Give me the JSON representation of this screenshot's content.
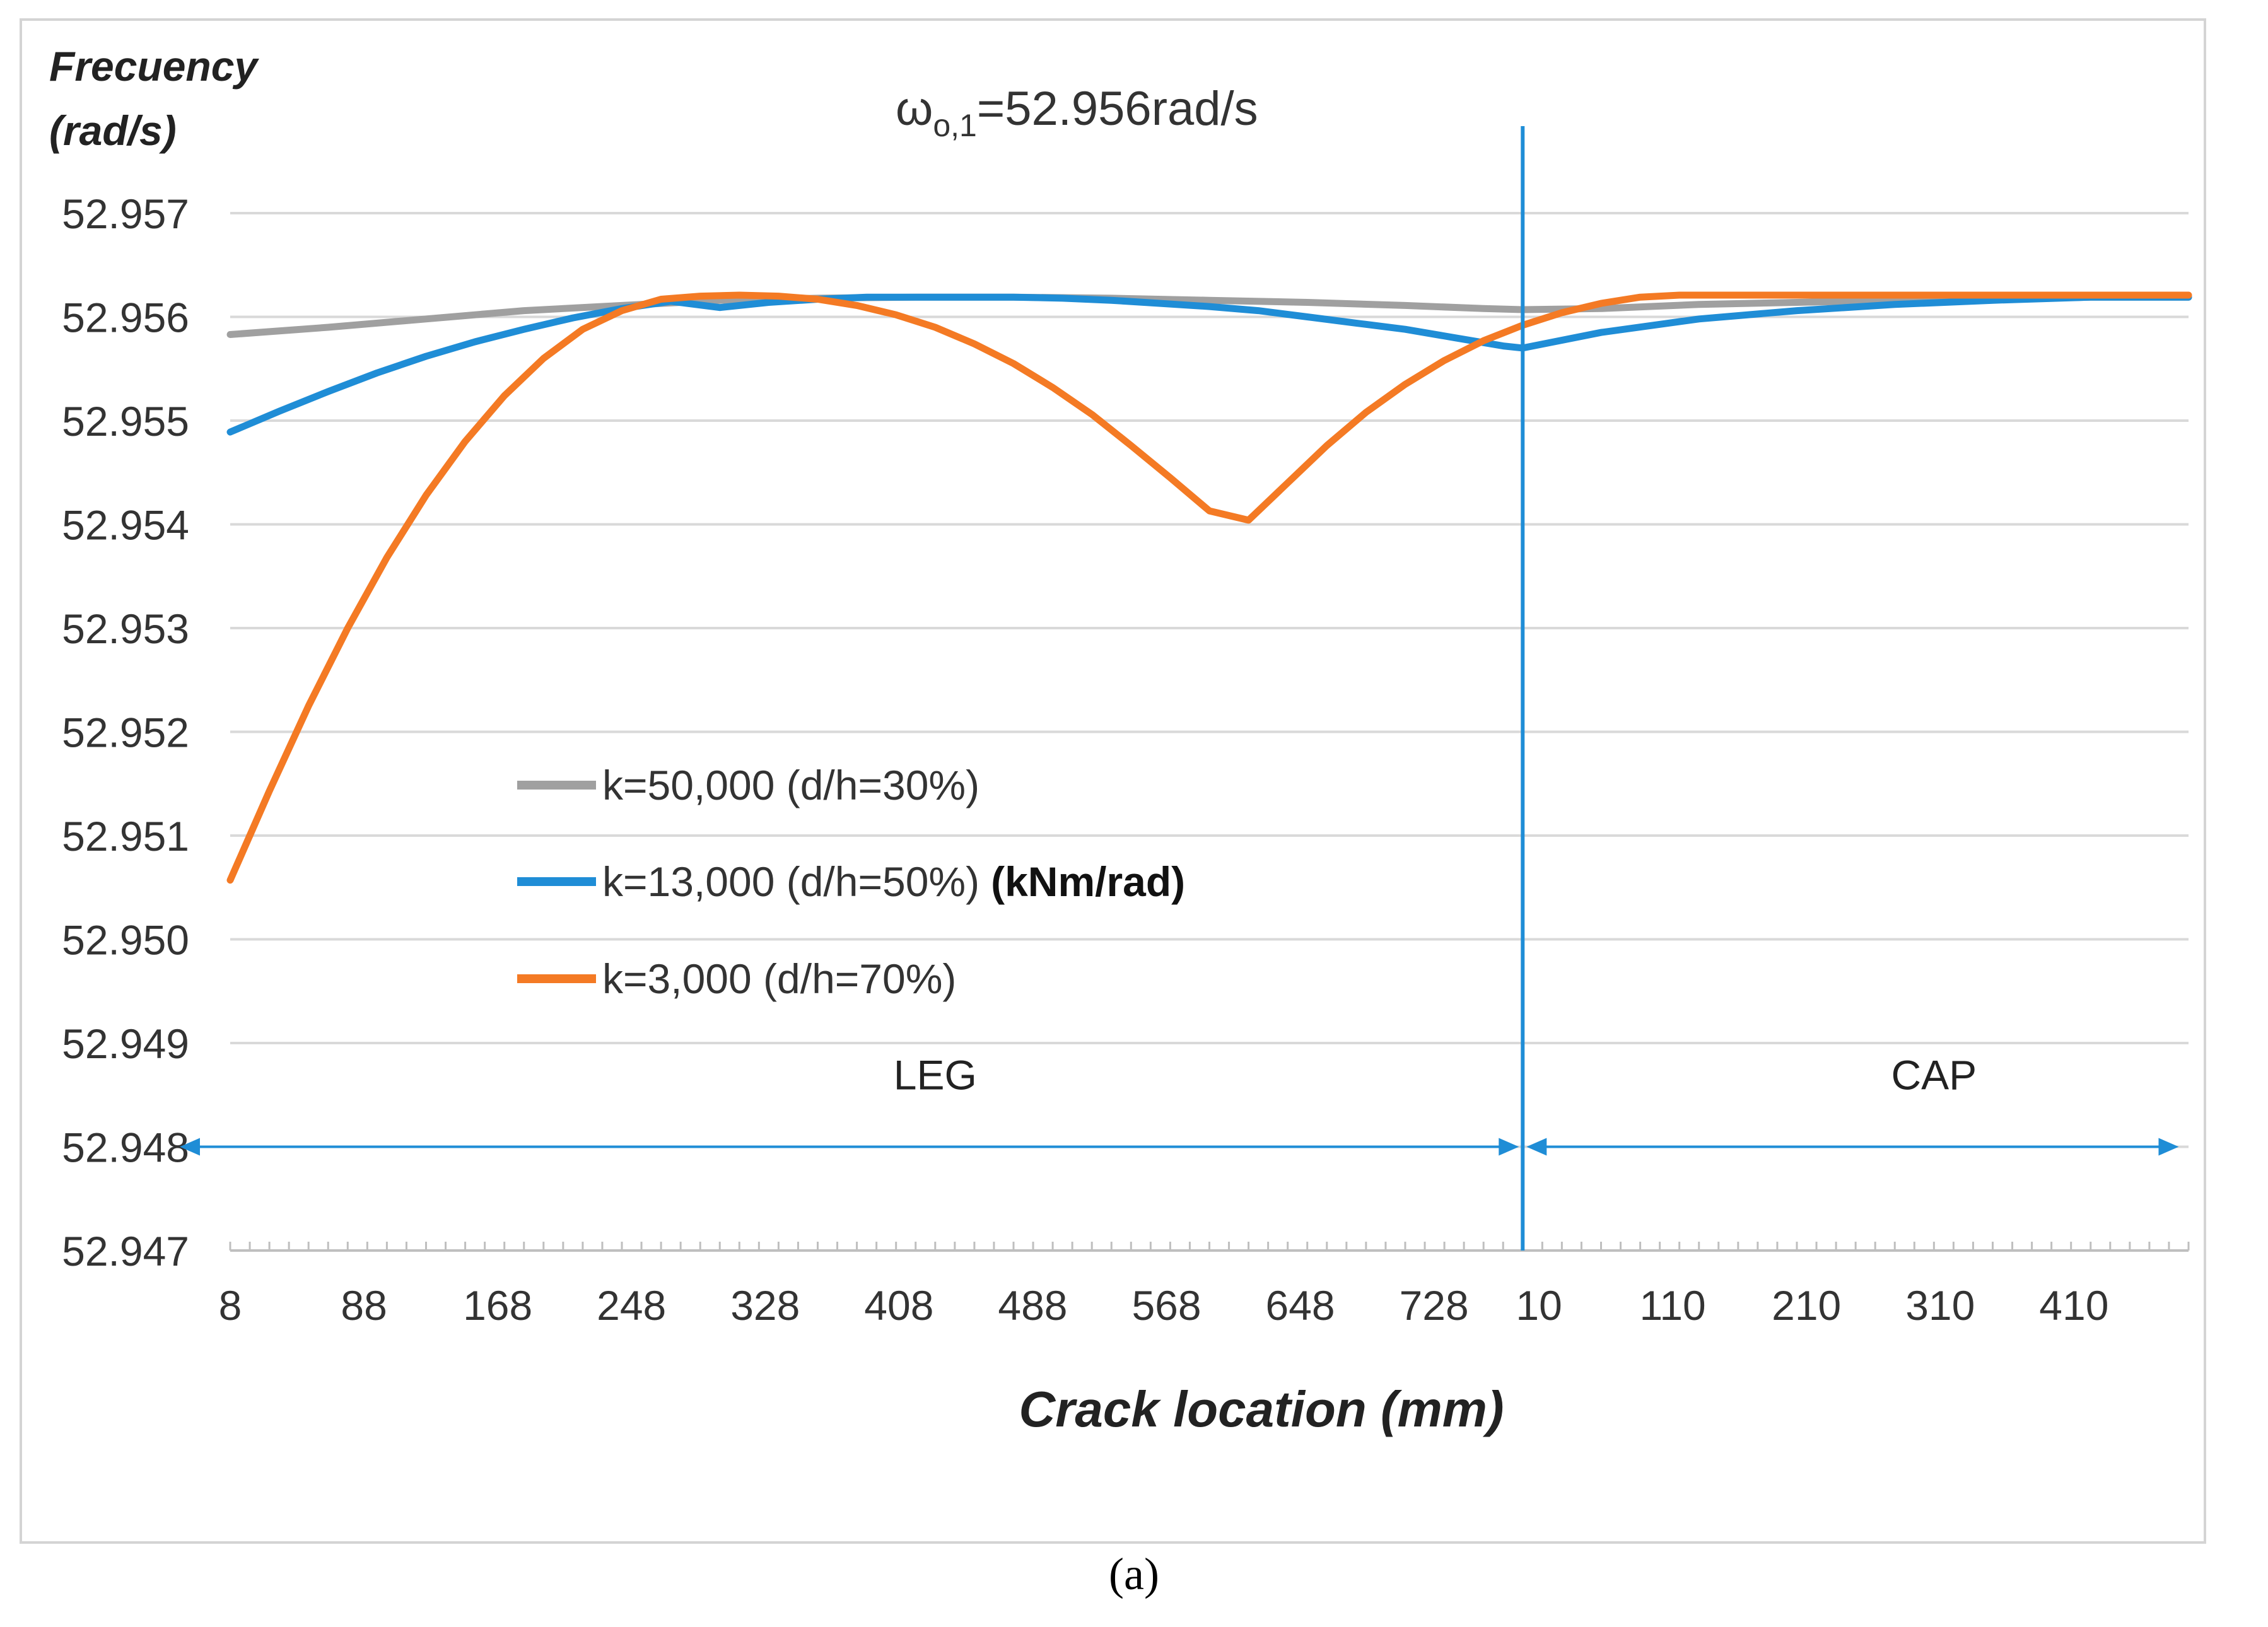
{
  "chart_data": {
    "type": "line",
    "title": "ωo,1=52.956rad/s",
    "title_parts": {
      "symbol": "ω",
      "subscript": "o,1",
      "value": "=52.956rad/s"
    },
    "ylabel_line1": "Frecuency",
    "ylabel_line2": "(rad/s)",
    "xlabel": "Crack location (mm)",
    "grid": true,
    "legend_position": "center-left",
    "legend_unit": "(kNm/rad)",
    "ylim": [
      52.947,
      52.957
    ],
    "yticks": [
      "52.957",
      "52.956",
      "52.955",
      "52.954",
      "52.953",
      "52.952",
      "52.951",
      "52.950",
      "52.949",
      "52.948",
      "52.947"
    ],
    "ytick_values": [
      52.957,
      52.956,
      52.955,
      52.954,
      52.953,
      52.952,
      52.951,
      52.95,
      52.949,
      52.948,
      52.947
    ],
    "xlim": [
      0,
      1
    ],
    "xticks": [
      {
        "label": "8",
        "pos": 0.0
      },
      {
        "label": "88",
        "pos": 0.0683
      },
      {
        "label": "168",
        "pos": 0.1366
      },
      {
        "label": "248",
        "pos": 0.2049
      },
      {
        "label": "328",
        "pos": 0.2732
      },
      {
        "label": "408",
        "pos": 0.3415
      },
      {
        "label": "488",
        "pos": 0.4098
      },
      {
        "label": "568",
        "pos": 0.4781
      },
      {
        "label": "648",
        "pos": 0.5464
      },
      {
        "label": "728",
        "pos": 0.6147
      },
      {
        "label": "10",
        "pos": 0.6683
      },
      {
        "label": "110",
        "pos": 0.7366
      },
      {
        "label": "210",
        "pos": 0.8049
      },
      {
        "label": "310",
        "pos": 0.8732
      },
      {
        "label": "410",
        "pos": 0.9415
      }
    ],
    "boundary_pos": 0.66,
    "regions": [
      {
        "label": "LEG",
        "from": 0.0,
        "to": 0.66,
        "label_pos": 0.36
      },
      {
        "label": "CAP",
        "from": 0.66,
        "to": 1.0,
        "label_pos": 0.87
      }
    ],
    "series": [
      {
        "name": "k=50,000 (d/h=30%)",
        "color": "#a0a0a0",
        "x": [
          0.0,
          0.05,
          0.1,
          0.15,
          0.2,
          0.25,
          0.3,
          0.35,
          0.4,
          0.45,
          0.5,
          0.55,
          0.6,
          0.64,
          0.66,
          0.7,
          0.75,
          0.8,
          0.85,
          0.9,
          0.95,
          1.0
        ],
        "y": [
          52.95583,
          52.9559,
          52.95598,
          52.95606,
          52.95611,
          52.95616,
          52.95618,
          52.95619,
          52.95619,
          52.95618,
          52.95616,
          52.95614,
          52.95611,
          52.95608,
          52.95607,
          52.95608,
          52.95612,
          52.95614,
          52.95616,
          52.95617,
          52.95619,
          52.95619
        ]
      },
      {
        "name": "k=13,000 (d/h=50%)",
        "color": "#1f8dd6",
        "x": [
          0.0,
          0.025,
          0.05,
          0.075,
          0.1,
          0.125,
          0.15,
          0.175,
          0.2,
          0.225,
          0.25,
          0.275,
          0.3,
          0.325,
          0.35,
          0.375,
          0.4,
          0.425,
          0.45,
          0.475,
          0.5,
          0.525,
          0.55,
          0.575,
          0.6,
          0.625,
          0.65,
          0.66,
          0.7,
          0.75,
          0.8,
          0.85,
          0.9,
          0.95,
          1.0
        ],
        "y": [
          52.95489,
          52.95509,
          52.95528,
          52.95546,
          52.95562,
          52.95576,
          52.95588,
          52.95599,
          52.95608,
          52.95615,
          52.95609,
          52.95614,
          52.95617,
          52.95619,
          52.95619,
          52.95619,
          52.95619,
          52.95618,
          52.95616,
          52.95613,
          52.9561,
          52.95606,
          52.956,
          52.95594,
          52.95588,
          52.9558,
          52.95572,
          52.9557,
          52.95585,
          52.95598,
          52.95606,
          52.95612,
          52.95616,
          52.95619,
          52.95619
        ]
      },
      {
        "name": "k=3,000 (d/h=70%)",
        "color": "#f47a24",
        "x": [
          0.0,
          0.02,
          0.04,
          0.06,
          0.08,
          0.1,
          0.12,
          0.14,
          0.16,
          0.18,
          0.2,
          0.22,
          0.24,
          0.26,
          0.28,
          0.3,
          0.32,
          0.34,
          0.36,
          0.38,
          0.4,
          0.42,
          0.44,
          0.46,
          0.48,
          0.5,
          0.52,
          0.54,
          0.56,
          0.58,
          0.6,
          0.62,
          0.64,
          0.66,
          0.68,
          0.7,
          0.72,
          0.74,
          0.76,
          0.78,
          0.8,
          0.82,
          0.84,
          0.86,
          0.88,
          0.9,
          0.92,
          0.94,
          0.96,
          0.98,
          1.0
        ],
        "y": [
          52.95057,
          52.95143,
          52.95225,
          52.953,
          52.95368,
          52.95428,
          52.9548,
          52.95524,
          52.9556,
          52.95588,
          52.95606,
          52.95617,
          52.9562,
          52.95621,
          52.9562,
          52.95617,
          52.95611,
          52.95602,
          52.9559,
          52.95574,
          52.95555,
          52.95532,
          52.95506,
          52.95476,
          52.95445,
          52.95413,
          52.95404,
          52.9544,
          52.95476,
          52.95508,
          52.95535,
          52.95558,
          52.95577,
          52.95592,
          52.95604,
          52.95613,
          52.95619,
          52.95621,
          52.95621,
          52.95621,
          52.95621,
          52.95621,
          52.95621,
          52.95621,
          52.95621,
          52.95621,
          52.95621,
          52.95621,
          52.95621,
          52.95621,
          52.95621
        ]
      }
    ]
  },
  "caption": "(a)"
}
